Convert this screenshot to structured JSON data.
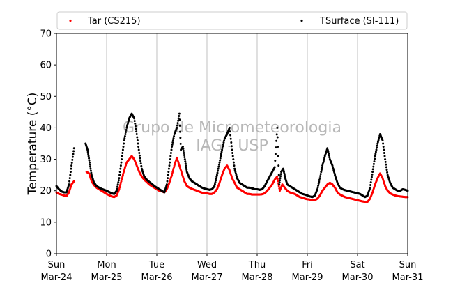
{
  "chart_data": {
    "type": "scatter",
    "ylabel": "Temperature (°C)",
    "xlabel": "",
    "ylim": [
      0,
      70
    ],
    "yticks": [
      0,
      10,
      20,
      30,
      40,
      50,
      60,
      70
    ],
    "xlim": [
      0,
      7
    ],
    "xticks": [
      {
        "x": 0,
        "day": "Sun",
        "date": "Mar-24"
      },
      {
        "x": 1,
        "day": "Mon",
        "date": "Mar-25"
      },
      {
        "x": 2,
        "day": "Tue",
        "date": "Mar-26"
      },
      {
        "x": 3,
        "day": "Wed",
        "date": "Mar-27"
      },
      {
        "x": 4,
        "day": "Thu",
        "date": "Mar-28"
      },
      {
        "x": 5,
        "day": "Fri",
        "date": "Mar-29"
      },
      {
        "x": 6,
        "day": "Sat",
        "date": "Mar-30"
      },
      {
        "x": 7,
        "day": "Sun",
        "date": "Mar-31"
      }
    ],
    "grid": "vertical",
    "legend_position": "top",
    "watermark": [
      "Grupo de Micrometeorologia",
      "IAG - USP"
    ],
    "series": [
      {
        "name": "Tar (CS215)",
        "color": "#ff0000",
        "points": [
          [
            0.0,
            19.5
          ],
          [
            0.05,
            19.0
          ],
          [
            0.1,
            18.8
          ],
          [
            0.15,
            18.5
          ],
          [
            0.2,
            18.3
          ],
          [
            0.25,
            19.5
          ],
          [
            0.3,
            22.0
          ],
          [
            0.35,
            23.0
          ],
          [
            0.6,
            26.0
          ],
          [
            0.65,
            25.5
          ],
          [
            0.7,
            23.0
          ],
          [
            0.75,
            21.8
          ],
          [
            0.8,
            21.0
          ],
          [
            0.85,
            20.5
          ],
          [
            0.9,
            20.0
          ],
          [
            0.95,
            19.5
          ],
          [
            1.0,
            19.0
          ],
          [
            1.05,
            18.6
          ],
          [
            1.1,
            18.2
          ],
          [
            1.15,
            18.0
          ],
          [
            1.2,
            18.5
          ],
          [
            1.25,
            20.5
          ],
          [
            1.3,
            23.5
          ],
          [
            1.35,
            26.5
          ],
          [
            1.4,
            29.0
          ],
          [
            1.45,
            30.0
          ],
          [
            1.5,
            31.0
          ],
          [
            1.55,
            30.0
          ],
          [
            1.6,
            28.0
          ],
          [
            1.65,
            26.0
          ],
          [
            1.7,
            24.5
          ],
          [
            1.75,
            23.5
          ],
          [
            1.8,
            22.8
          ],
          [
            1.85,
            22.0
          ],
          [
            1.9,
            21.5
          ],
          [
            1.95,
            21.0
          ],
          [
            2.0,
            20.5
          ],
          [
            2.05,
            20.0
          ],
          [
            2.1,
            19.8
          ],
          [
            2.15,
            19.5
          ],
          [
            2.2,
            20.5
          ],
          [
            2.25,
            22.5
          ],
          [
            2.3,
            25.0
          ],
          [
            2.35,
            28.0
          ],
          [
            2.4,
            30.5
          ],
          [
            2.45,
            28.0
          ],
          [
            2.5,
            25.5
          ],
          [
            2.55,
            23.0
          ],
          [
            2.6,
            21.5
          ],
          [
            2.65,
            21.0
          ],
          [
            2.7,
            20.6
          ],
          [
            2.75,
            20.3
          ],
          [
            2.8,
            20.0
          ],
          [
            2.85,
            19.7
          ],
          [
            2.9,
            19.4
          ],
          [
            2.95,
            19.3
          ],
          [
            3.0,
            19.2
          ],
          [
            3.05,
            19.0
          ],
          [
            3.1,
            19.0
          ],
          [
            3.15,
            19.5
          ],
          [
            3.2,
            20.5
          ],
          [
            3.25,
            22.5
          ],
          [
            3.3,
            25.0
          ],
          [
            3.35,
            27.0
          ],
          [
            3.4,
            28.0
          ],
          [
            3.45,
            26.5
          ],
          [
            3.5,
            24.0
          ],
          [
            3.55,
            22.5
          ],
          [
            3.6,
            21.0
          ],
          [
            3.65,
            20.5
          ],
          [
            3.7,
            20.0
          ],
          [
            3.75,
            19.5
          ],
          [
            3.8,
            19.0
          ],
          [
            3.85,
            19.0
          ],
          [
            3.9,
            18.8
          ],
          [
            3.95,
            18.8
          ],
          [
            4.0,
            18.8
          ],
          [
            4.05,
            18.8
          ],
          [
            4.1,
            18.9
          ],
          [
            4.15,
            19.2
          ],
          [
            4.2,
            20.0
          ],
          [
            4.25,
            21.0
          ],
          [
            4.3,
            22.0
          ],
          [
            4.35,
            23.5
          ],
          [
            4.4,
            24.5
          ],
          [
            4.45,
            20.0
          ],
          [
            4.5,
            22.0
          ],
          [
            4.55,
            21.0
          ],
          [
            4.6,
            20.0
          ],
          [
            4.65,
            19.5
          ],
          [
            4.7,
            19.2
          ],
          [
            4.75,
            19.0
          ],
          [
            4.8,
            18.5
          ],
          [
            4.85,
            18.0
          ],
          [
            4.9,
            17.8
          ],
          [
            4.95,
            17.5
          ],
          [
            5.0,
            17.3
          ],
          [
            5.05,
            17.2
          ],
          [
            5.1,
            17.0
          ],
          [
            5.15,
            17.0
          ],
          [
            5.2,
            17.5
          ],
          [
            5.25,
            18.5
          ],
          [
            5.3,
            20.0
          ],
          [
            5.35,
            21.0
          ],
          [
            5.4,
            22.0
          ],
          [
            5.45,
            22.5
          ],
          [
            5.5,
            22.0
          ],
          [
            5.55,
            21.0
          ],
          [
            5.6,
            19.5
          ],
          [
            5.65,
            18.8
          ],
          [
            5.7,
            18.4
          ],
          [
            5.75,
            18.0
          ],
          [
            5.8,
            17.8
          ],
          [
            5.85,
            17.6
          ],
          [
            5.9,
            17.4
          ],
          [
            5.95,
            17.2
          ],
          [
            6.0,
            17.0
          ],
          [
            6.05,
            16.8
          ],
          [
            6.1,
            16.6
          ],
          [
            6.15,
            16.5
          ],
          [
            6.2,
            16.5
          ],
          [
            6.25,
            17.5
          ],
          [
            6.3,
            19.5
          ],
          [
            6.35,
            22.0
          ],
          [
            6.4,
            24.0
          ],
          [
            6.45,
            25.5
          ],
          [
            6.5,
            24.0
          ],
          [
            6.55,
            21.5
          ],
          [
            6.6,
            20.0
          ],
          [
            6.65,
            19.2
          ],
          [
            6.7,
            18.8
          ],
          [
            6.75,
            18.5
          ],
          [
            6.8,
            18.3
          ],
          [
            6.85,
            18.2
          ],
          [
            6.9,
            18.1
          ],
          [
            6.95,
            18.0
          ],
          [
            7.0,
            18.0
          ]
        ]
      },
      {
        "name": "TSurface (SI-111)",
        "color": "#000000",
        "points": [
          [
            0.0,
            21.5
          ],
          [
            0.05,
            20.5
          ],
          [
            0.1,
            19.8
          ],
          [
            0.15,
            19.5
          ],
          [
            0.2,
            19.5
          ],
          [
            0.25,
            22.0
          ],
          [
            0.3,
            28.0
          ],
          [
            0.35,
            33.5
          ],
          [
            0.58,
            35.0
          ],
          [
            0.62,
            33.0
          ],
          [
            0.66,
            29.0
          ],
          [
            0.7,
            25.0
          ],
          [
            0.75,
            22.5
          ],
          [
            0.8,
            21.5
          ],
          [
            0.85,
            21.0
          ],
          [
            0.9,
            20.6
          ],
          [
            0.95,
            20.3
          ],
          [
            1.0,
            20.0
          ],
          [
            1.05,
            19.6
          ],
          [
            1.1,
            19.2
          ],
          [
            1.15,
            19.0
          ],
          [
            1.2,
            20.0
          ],
          [
            1.25,
            24.0
          ],
          [
            1.3,
            30.0
          ],
          [
            1.35,
            36.0
          ],
          [
            1.4,
            40.0
          ],
          [
            1.45,
            43.0
          ],
          [
            1.5,
            44.5
          ],
          [
            1.55,
            43.0
          ],
          [
            1.6,
            38.0
          ],
          [
            1.65,
            32.0
          ],
          [
            1.7,
            27.0
          ],
          [
            1.75,
            24.5
          ],
          [
            1.8,
            23.5
          ],
          [
            1.85,
            22.8
          ],
          [
            1.9,
            22.2
          ],
          [
            1.95,
            21.5
          ],
          [
            2.0,
            21.0
          ],
          [
            2.05,
            20.5
          ],
          [
            2.1,
            20.0
          ],
          [
            2.15,
            19.5
          ],
          [
            2.2,
            22.0
          ],
          [
            2.25,
            28.0
          ],
          [
            2.3,
            34.0
          ],
          [
            2.35,
            38.0
          ],
          [
            2.4,
            40.0
          ],
          [
            2.45,
            44.5
          ],
          [
            2.48,
            33.0
          ],
          [
            2.52,
            34.0
          ],
          [
            2.56,
            30.0
          ],
          [
            2.6,
            26.0
          ],
          [
            2.65,
            24.0
          ],
          [
            2.7,
            23.0
          ],
          [
            2.75,
            22.5
          ],
          [
            2.8,
            22.0
          ],
          [
            2.85,
            21.5
          ],
          [
            2.9,
            21.0
          ],
          [
            2.95,
            20.7
          ],
          [
            3.0,
            20.5
          ],
          [
            3.05,
            20.3
          ],
          [
            3.1,
            20.5
          ],
          [
            3.15,
            21.5
          ],
          [
            3.2,
            25.0
          ],
          [
            3.25,
            29.0
          ],
          [
            3.3,
            33.0
          ],
          [
            3.35,
            36.5
          ],
          [
            3.4,
            38.0
          ],
          [
            3.45,
            40.0
          ],
          [
            3.5,
            33.0
          ],
          [
            3.55,
            27.0
          ],
          [
            3.6,
            24.0
          ],
          [
            3.65,
            22.5
          ],
          [
            3.7,
            22.0
          ],
          [
            3.75,
            21.5
          ],
          [
            3.8,
            21.0
          ],
          [
            3.85,
            21.0
          ],
          [
            3.9,
            20.8
          ],
          [
            3.95,
            20.5
          ],
          [
            4.0,
            20.5
          ],
          [
            4.05,
            20.3
          ],
          [
            4.1,
            20.5
          ],
          [
            4.15,
            21.5
          ],
          [
            4.2,
            23.0
          ],
          [
            4.25,
            24.5
          ],
          [
            4.3,
            26.0
          ],
          [
            4.35,
            27.5
          ],
          [
            4.4,
            40.0
          ],
          [
            4.44,
            22.0
          ],
          [
            4.48,
            26.0
          ],
          [
            4.52,
            27.0
          ],
          [
            4.56,
            24.0
          ],
          [
            4.6,
            22.0
          ],
          [
            4.65,
            21.5
          ],
          [
            4.7,
            21.0
          ],
          [
            4.75,
            20.5
          ],
          [
            4.8,
            20.0
          ],
          [
            4.85,
            19.5
          ],
          [
            4.9,
            19.0
          ],
          [
            4.95,
            18.8
          ],
          [
            5.0,
            18.5
          ],
          [
            5.05,
            18.2
          ],
          [
            5.1,
            18.0
          ],
          [
            5.15,
            18.5
          ],
          [
            5.2,
            20.5
          ],
          [
            5.25,
            24.0
          ],
          [
            5.3,
            28.0
          ],
          [
            5.35,
            31.0
          ],
          [
            5.4,
            33.5
          ],
          [
            5.45,
            30.0
          ],
          [
            5.5,
            28.0
          ],
          [
            5.55,
            25.0
          ],
          [
            5.6,
            22.5
          ],
          [
            5.65,
            21.0
          ],
          [
            5.7,
            20.5
          ],
          [
            5.75,
            20.2
          ],
          [
            5.8,
            20.0
          ],
          [
            5.85,
            19.8
          ],
          [
            5.9,
            19.6
          ],
          [
            5.95,
            19.4
          ],
          [
            6.0,
            19.2
          ],
          [
            6.05,
            19.0
          ],
          [
            6.1,
            18.5
          ],
          [
            6.15,
            18.0
          ],
          [
            6.2,
            18.5
          ],
          [
            6.25,
            21.0
          ],
          [
            6.3,
            26.0
          ],
          [
            6.35,
            31.0
          ],
          [
            6.4,
            35.0
          ],
          [
            6.45,
            38.0
          ],
          [
            6.5,
            36.0
          ],
          [
            6.55,
            30.0
          ],
          [
            6.6,
            25.0
          ],
          [
            6.65,
            22.5
          ],
          [
            6.7,
            21.0
          ],
          [
            6.75,
            20.5
          ],
          [
            6.8,
            20.0
          ],
          [
            6.85,
            20.0
          ],
          [
            6.9,
            20.5
          ],
          [
            6.95,
            20.3
          ],
          [
            7.0,
            20.0
          ]
        ]
      }
    ]
  }
}
